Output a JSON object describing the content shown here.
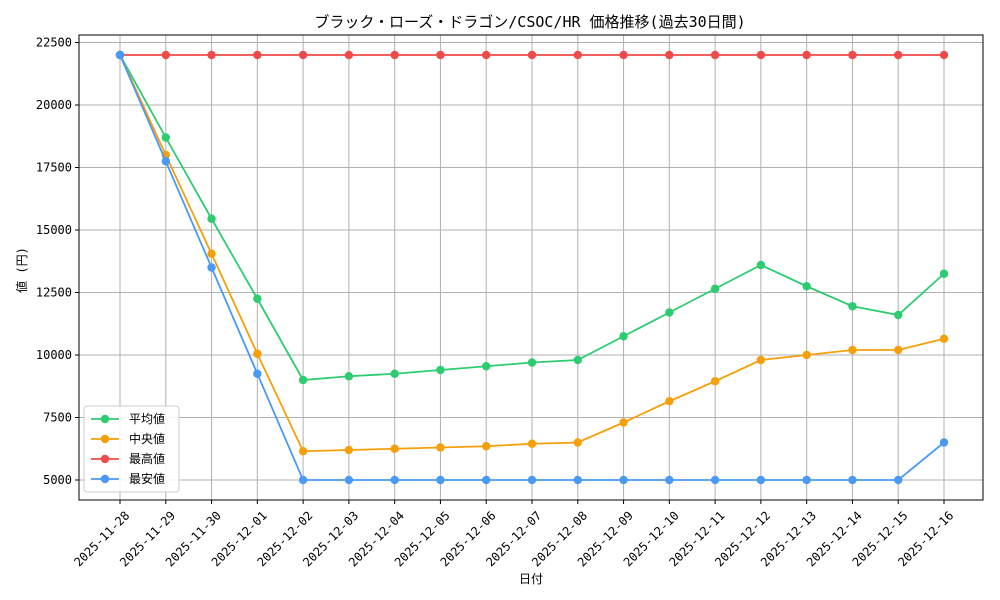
{
  "chart_data": {
    "type": "line",
    "title": "ブラック・ローズ・ドラゴン/CSOC/HR 価格推移(過去30日間)",
    "xlabel": "日付",
    "ylabel": "値 (円)",
    "ylim": [
      4200,
      22800
    ],
    "yticks": [
      5000,
      7500,
      10000,
      12500,
      15000,
      17500,
      20000,
      22500
    ],
    "grid": true,
    "legend_position": "bottom-left",
    "categories": [
      "2025-11-28",
      "2025-11-29",
      "2025-11-30",
      "2025-12-01",
      "2025-12-02",
      "2025-12-03",
      "2025-12-04",
      "2025-12-05",
      "2025-12-06",
      "2025-12-07",
      "2025-12-08",
      "2025-12-09",
      "2025-12-10",
      "2025-12-11",
      "2025-12-12",
      "2025-12-13",
      "2025-12-14",
      "2025-12-15",
      "2025-12-16"
    ],
    "series": [
      {
        "name": "平均値",
        "color": "#2ecc71",
        "values": [
          22000,
          18700,
          15450,
          12250,
          9000,
          9150,
          9250,
          9400,
          9550,
          9700,
          9800,
          10750,
          11700,
          12650,
          13600,
          12750,
          11950,
          11600,
          13250
        ]
      },
      {
        "name": "中央値",
        "color": "#f5a00a",
        "values": [
          22000,
          18000,
          14050,
          10050,
          6150,
          6200,
          6250,
          6300,
          6350,
          6450,
          6500,
          7300,
          8150,
          8950,
          9800,
          10000,
          10200,
          10200,
          10650
        ]
      },
      {
        "name": "最高値",
        "color": "#f04a4a",
        "values": [
          22000,
          22000,
          22000,
          22000,
          22000,
          22000,
          22000,
          22000,
          22000,
          22000,
          22000,
          22000,
          22000,
          22000,
          22000,
          22000,
          22000,
          22000,
          22000
        ]
      },
      {
        "name": "最安値",
        "color": "#4a9af5",
        "values": [
          22000,
          17750,
          13500,
          9250,
          5000,
          5000,
          5000,
          5000,
          5000,
          5000,
          5000,
          5000,
          5000,
          5000,
          5000,
          5000,
          5000,
          5000,
          6500
        ]
      }
    ]
  }
}
